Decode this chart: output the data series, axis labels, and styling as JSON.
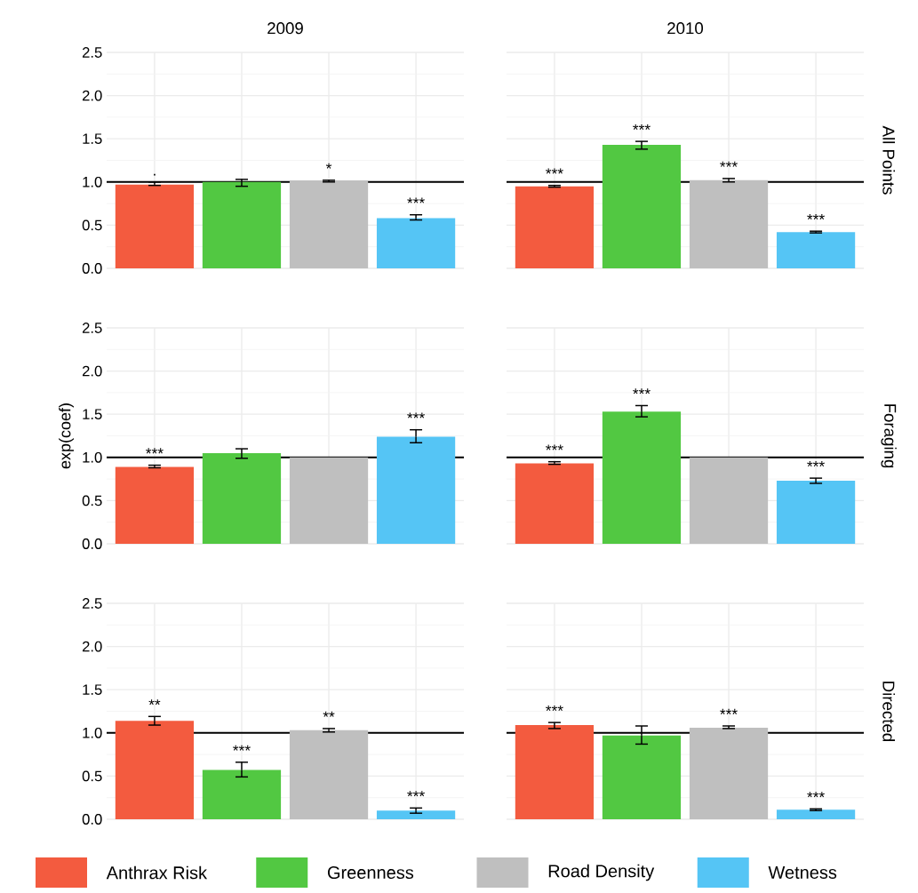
{
  "chart_data": [
    {
      "type": "bar",
      "title": "2010",
      "y2label": "All Points",
      "categories": [
        null,
        null,
        null,
        null
      ],
      "ylim": [
        0,
        2.5
      ],
      "yticks": [
        {
          "value": 0,
          "label": null
        },
        {
          "value": 0.5,
          "label": null
        },
        {
          "value": 1,
          "label": null
        },
        {
          "value": 1.5,
          "label": null
        },
        {
          "value": 2,
          "label": null
        },
        {
          "value": 2.5,
          "label": null
        }
      ],
      "grid": true,
      "tick_labels": false,
      "ref_lines": [
        {
          "axis": "y",
          "value": 1,
          "color": "#000000"
        }
      ],
      "colors": [
        "#f35b3f",
        "#52c842",
        "#bfbfbf",
        "#55c5f5"
      ],
      "values": [
        0.95,
        1.43,
        1.02,
        0.42
      ],
      "errors": [
        [
          0.94,
          0.96
        ],
        [
          1.38,
          1.47
        ],
        [
          1.0,
          1.04
        ],
        [
          0.41,
          0.43
        ]
      ],
      "value_labels": [
        "***",
        "***",
        "***",
        "***"
      ]
    },
    {
      "type": "bar",
      "title": "2009",
      "categories": [
        null,
        null,
        null,
        null
      ],
      "ylim": [
        0,
        2.5
      ],
      "yticks": [
        {
          "value": 0,
          "label": "0.0"
        },
        {
          "value": 0.5,
          "label": "0.5"
        },
        {
          "value": 1,
          "label": "1.0"
        },
        {
          "value": 1.5,
          "label": "1.5"
        },
        {
          "value": 2,
          "label": "2.0"
        },
        {
          "value": 2.5,
          "label": "2.5"
        }
      ],
      "grid": true,
      "tick_labels": "y",
      "ref_lines": [
        {
          "axis": "y",
          "value": 1,
          "color": "#000000"
        }
      ],
      "colors": [
        "#f35b3f",
        "#52c842",
        "#bfbfbf",
        "#55c5f5"
      ],
      "values": [
        0.97,
        1.0,
        1.01,
        0.58
      ],
      "errors": [
        [
          0.96,
          1.0
        ],
        [
          0.95,
          1.03
        ],
        [
          1.0,
          1.02
        ],
        [
          0.56,
          0.62
        ]
      ],
      "value_labels": [
        ".",
        null,
        "*",
        "***"
      ]
    },
    {
      "type": "bar",
      "y2label": "Foraging",
      "categories": [
        null,
        null,
        null,
        null
      ],
      "ylim": [
        0,
        2.5
      ],
      "yticks": [
        {
          "value": 0,
          "label": null
        },
        {
          "value": 0.5,
          "label": null
        },
        {
          "value": 1,
          "label": null
        },
        {
          "value": 1.5,
          "label": null
        },
        {
          "value": 2,
          "label": null
        },
        {
          "value": 2.5,
          "label": null
        }
      ],
      "grid": true,
      "tick_labels": false,
      "ref_lines": [
        {
          "axis": "y",
          "value": 1,
          "color": "#000000"
        }
      ],
      "colors": [
        "#f35b3f",
        "#52c842",
        "#bfbfbf",
        "#55c5f5"
      ],
      "values": [
        0.93,
        1.53,
        1.0,
        0.73
      ],
      "errors": [
        [
          0.92,
          0.95
        ],
        [
          1.47,
          1.6
        ],
        null,
        [
          0.7,
          0.76
        ]
      ],
      "value_labels": [
        "***",
        "***",
        null,
        "***"
      ]
    },
    {
      "type": "bar",
      "ylabel": "exp(coef)",
      "categories": [
        null,
        null,
        null,
        null
      ],
      "ylim": [
        0,
        2.5
      ],
      "yticks": [
        {
          "value": 0,
          "label": "0.0"
        },
        {
          "value": 0.5,
          "label": "0.5"
        },
        {
          "value": 1,
          "label": "1.0"
        },
        {
          "value": 1.5,
          "label": "1.5"
        },
        {
          "value": 2,
          "label": "2.0"
        },
        {
          "value": 2.5,
          "label": "2.5"
        }
      ],
      "grid": true,
      "tick_labels": "y",
      "ref_lines": [
        {
          "axis": "y",
          "value": 1,
          "color": "#000000"
        }
      ],
      "colors": [
        "#f35b3f",
        "#52c842",
        "#bfbfbf",
        "#55c5f5"
      ],
      "values": [
        0.89,
        1.05,
        1.0,
        1.24
      ],
      "errors": [
        [
          0.88,
          0.91
        ],
        [
          0.99,
          1.1
        ],
        null,
        [
          1.17,
          1.32
        ]
      ],
      "value_labels": [
        "***",
        null,
        null,
        "***"
      ]
    },
    {
      "type": "bar",
      "y2label": "Directed",
      "categories": [
        null,
        null,
        null,
        null
      ],
      "ylim": [
        0,
        2.5
      ],
      "yticks": [
        {
          "value": 0,
          "label": null
        },
        {
          "value": 0.5,
          "label": null
        },
        {
          "value": 1,
          "label": null
        },
        {
          "value": 1.5,
          "label": null
        },
        {
          "value": 2,
          "label": null
        },
        {
          "value": 2.5,
          "label": null
        }
      ],
      "grid": true,
      "tick_labels": false,
      "ref_lines": [
        {
          "axis": "y",
          "value": 1,
          "color": "#000000"
        }
      ],
      "colors": [
        "#f35b3f",
        "#52c842",
        "#bfbfbf",
        "#55c5f5"
      ],
      "values": [
        1.09,
        0.97,
        1.06,
        0.11
      ],
      "errors": [
        [
          1.05,
          1.12
        ],
        [
          0.87,
          1.08
        ],
        [
          1.05,
          1.08
        ],
        [
          0.1,
          0.12
        ]
      ],
      "value_labels": [
        "***",
        null,
        "***",
        "***"
      ]
    },
    {
      "type": "bar",
      "categories": [
        null,
        null,
        null,
        null
      ],
      "ylim": [
        0,
        2.5
      ],
      "yticks": [
        {
          "value": 0,
          "label": "0.0"
        },
        {
          "value": 0.5,
          "label": "0.5"
        },
        {
          "value": 1,
          "label": "1.0"
        },
        {
          "value": 1.5,
          "label": "1.5"
        },
        {
          "value": 2,
          "label": "2.0"
        },
        {
          "value": 2.5,
          "label": "2.5"
        }
      ],
      "grid": true,
      "tick_labels": "y",
      "ref_lines": [
        {
          "axis": "y",
          "value": 1,
          "color": "#000000"
        }
      ],
      "colors": [
        "#f35b3f",
        "#52c842",
        "#bfbfbf",
        "#55c5f5"
      ],
      "values": [
        1.14,
        0.57,
        1.03,
        0.1
      ],
      "errors": [
        [
          1.09,
          1.19
        ],
        [
          0.49,
          0.66
        ],
        [
          1.01,
          1.05
        ],
        [
          0.07,
          0.13
        ]
      ],
      "value_labels": [
        "**",
        "***",
        "**",
        "***"
      ]
    },
    {
      "type": "other",
      "categories": [
        "Anthrax Risk",
        "Greenness",
        "Road Density",
        "Wetness"
      ],
      "colors": [
        "#f35b3f",
        "#52c842",
        "#bfbfbf",
        "#55c5f5"
      ]
    }
  ]
}
